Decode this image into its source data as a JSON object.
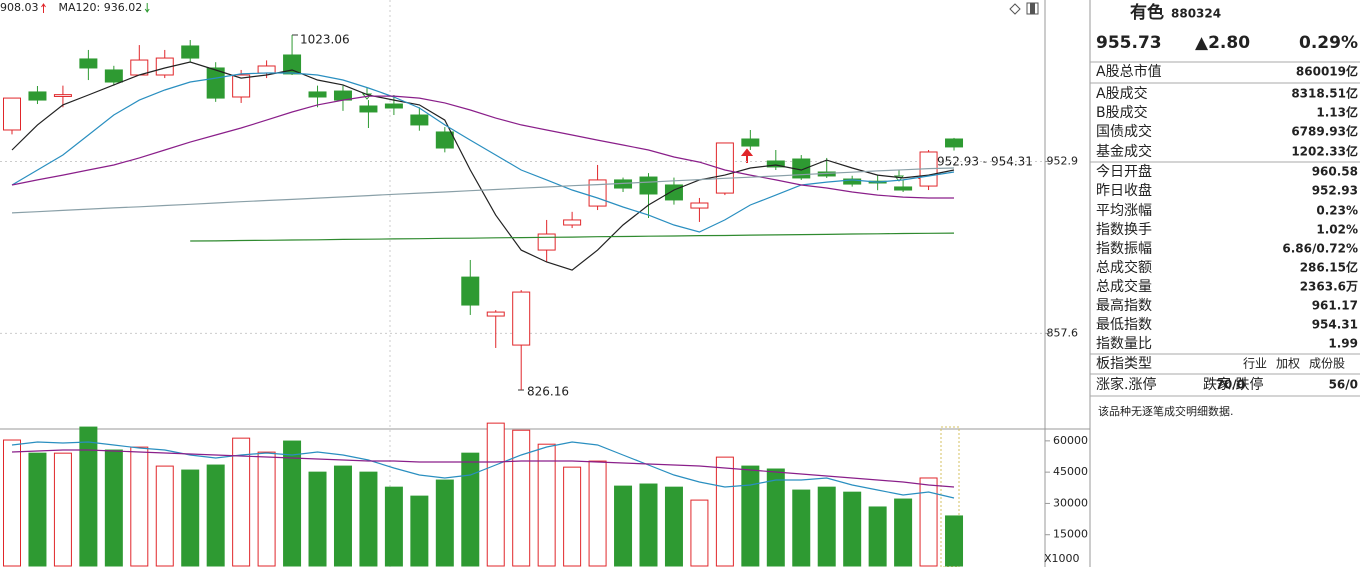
{
  "chart_data": {
    "type": "candlestick",
    "legend": [
      {
        "text": "908.03",
        "color": "#333333"
      },
      {
        "text": "MA120: 936.02",
        "color": "#1aa3b8"
      }
    ],
    "ylim": [
      805.1,
      1042.5
    ],
    "yticks": [
      952.9,
      857.6
    ],
    "up_color": "#e0262a",
    "down_color": "#2e9a32",
    "ohlc": [
      [
        970.4,
        988,
        968,
        988.1
      ],
      [
        991.5,
        994.8,
        984.8,
        987.0
      ],
      [
        989,
        995,
        983,
        990
      ],
      [
        1009.8,
        1014.8,
        998.1,
        1004.8
      ],
      [
        1003.7,
        1006,
        995,
        997
      ],
      [
        1000.9,
        1017.5,
        1000.9,
        1009.2
      ],
      [
        1000.9,
        1014.8,
        999.2,
        1010.3
      ],
      [
        1017,
        1020.3,
        1008,
        1010.3
      ],
      [
        1004.8,
        1008,
        986,
        988.1
      ],
      [
        988.7,
        1003.7,
        985.4,
        1000.9
      ],
      [
        1002,
        1009,
        999.2,
        1005.9
      ],
      [
        1012,
        1023.06,
        1000.9,
        1001.5
      ],
      [
        991.5,
        995,
        983,
        988.7
      ],
      [
        992,
        995,
        981,
        987
      ],
      [
        983.7,
        987,
        971.5,
        980.4
      ],
      [
        984.8,
        989.8,
        978.7,
        982.6
      ],
      [
        978.7,
        983,
        970,
        973.2
      ],
      [
        969.3,
        972,
        958,
        960.4
      ],
      [
        888.8,
        898.3,
        867.8,
        873.3
      ],
      [
        867.2,
        870.5,
        849.5,
        869.4
      ],
      [
        851.1,
        881.6,
        826.16,
        880.5
      ],
      [
        903.8,
        920.5,
        897.2,
        912.7
      ],
      [
        917.7,
        925,
        916,
        920.5
      ],
      [
        928.2,
        951,
        926,
        942.7
      ],
      [
        942.7,
        944,
        936,
        938.2
      ],
      [
        944.3,
        946.5,
        921.6,
        934.9
      ],
      [
        939.9,
        944,
        929,
        931.6
      ],
      [
        927.1,
        932.7,
        919.4,
        929.9
      ],
      [
        935.4,
        963.2,
        934.3,
        963.2
      ],
      [
        965.4,
        970.4,
        959.3,
        961.5
      ],
      [
        953.2,
        959.3,
        948.2,
        949.9
      ],
      [
        954.3,
        956.5,
        942.7,
        943.8
      ],
      [
        947.1,
        954.9,
        943.8,
        944.9
      ],
      [
        943.2,
        945,
        939,
        940.4
      ],
      [
        942,
        945.5,
        937,
        941
      ],
      [
        938.8,
        942.7,
        936,
        937.1
      ],
      [
        939.3,
        959.3,
        937.1,
        958.2
      ],
      [
        965.4,
        966,
        959,
        961
      ]
    ],
    "series": [
      {
        "color": "#222222",
        "values": [
          959.3,
          973.2,
          984.3,
          989.8,
          995.4,
          1000.9,
          1004.8,
          1008.1,
          1003.7,
          999.2,
          1000.9,
          1003.7,
          998.1,
          995.4,
          989.8,
          987.0,
          984.3,
          975.9,
          948.2,
          923.2,
          903.8,
          897.2,
          892.7,
          903.8,
          917.7,
          928.8,
          937.1,
          942.7,
          945.4,
          949.3,
          951.0,
          948.2,
          953.7,
          949.3,
          945.4,
          943.8,
          945.4,
          948.2
        ]
      },
      {
        "color": "#2a8fc0",
        "values": [
          939.9,
          948.2,
          956.5,
          967.6,
          978.7,
          987.0,
          992.6,
          997.0,
          999.2,
          1001.5,
          1002.0,
          1002.0,
          1000.9,
          998.1,
          993.7,
          988.7,
          982.6,
          973.2,
          964.8,
          956.5,
          948.2,
          942.7,
          937.1,
          932.7,
          927.7,
          923.2,
          917.7,
          913.8,
          920.5,
          928.8,
          934.3,
          939.9,
          941.5,
          942.7,
          941.5,
          942.7,
          944.9,
          947.1
        ]
      },
      {
        "color": "#8a1f8a",
        "values": [
          939.9,
          942.7,
          945.4,
          948.2,
          951.0,
          954.9,
          959.3,
          963.7,
          967.6,
          971.5,
          975.9,
          980.4,
          984.3,
          987.0,
          989.2,
          989.2,
          988.1,
          985.4,
          981.5,
          977.0,
          973.2,
          970.4,
          967.6,
          964.8,
          962.1,
          959.3,
          955.4,
          952.6,
          948.2,
          945.4,
          942.7,
          939.9,
          938.2,
          936.0,
          934.3,
          933.2,
          932.7,
          932.7
        ]
      },
      {
        "color": "#8aa0a8",
        "values": [
          924.4,
          925.1,
          925.8,
          926.5,
          927.2,
          927.8,
          928.5,
          929.2,
          929.9,
          930.6,
          931.3,
          931.9,
          932.6,
          933.3,
          934.0,
          934.7,
          935.4,
          936.0,
          936.7,
          937.4,
          938.1,
          938.8,
          939.5,
          940.1,
          940.8,
          941.5,
          942.2,
          942.9,
          943.6,
          944.2,
          944.9,
          945.6,
          946.3,
          947.0,
          947.7,
          948.3,
          949.0,
          949.3
        ]
      },
      {
        "color": "#2f8a2f",
        "values": [
          null,
          null,
          null,
          null,
          null,
          null,
          null,
          908.8,
          908.9,
          909.1,
          909.2,
          909.4,
          909.5,
          909.7,
          909.8,
          910.0,
          910.1,
          910.3,
          910.4,
          910.6,
          910.7,
          910.9,
          911.0,
          911.2,
          911.3,
          911.5,
          911.6,
          911.8,
          911.9,
          912.1,
          912.2,
          912.4,
          912.5,
          912.7,
          912.8,
          913.0,
          913.1,
          913.2
        ]
      }
    ],
    "annotations": [
      {
        "text": "1023.06"
      },
      {
        "text": "826.16"
      },
      {
        "text": "952.93 - 954.31"
      }
    ],
    "volume": {
      "ylim": [
        0,
        70000
      ],
      "yticks": [
        60000,
        45000,
        30000,
        15000
      ],
      "unit_label": "X1000",
      "values": [
        60400,
        54100,
        54100,
        66600,
        55600,
        57000,
        47900,
        46000,
        48400,
        61300,
        54600,
        59900,
        45000,
        47900,
        45000,
        37800,
        33500,
        41200,
        54100,
        68500,
        65100,
        58400,
        47400,
        50300,
        38300,
        39300,
        37800,
        31600,
        52200,
        47900,
        46500,
        36400,
        37800,
        35400,
        28300,
        32100,
        42200,
        24000
      ],
      "series": [
        {
          "color": "#2a8fc0",
          "values": [
            58000,
            59450,
            58970,
            59450,
            58000,
            56580,
            55620,
            53220,
            51780,
            53220,
            54180,
            53220,
            54660,
            53220,
            50820,
            46990,
            43630,
            42190,
            43630,
            48420,
            53220,
            57050,
            59450,
            58000,
            53220,
            48420,
            43630,
            40270,
            37880,
            38840,
            41230,
            41230,
            42190,
            38840,
            36440,
            34040,
            35480,
            32600
          ]
        },
        {
          "color": "#8a1f8a",
          "values": [
            54660,
            55140,
            55620,
            55620,
            55140,
            54660,
            54180,
            53700,
            53220,
            52740,
            52260,
            51780,
            51300,
            50820,
            50340,
            50340,
            49860,
            49860,
            49860,
            49860,
            50340,
            50340,
            50340,
            49860,
            49380,
            48900,
            48420,
            47940,
            46990,
            46030,
            45070,
            44110,
            43150,
            42190,
            41230,
            40270,
            38840,
            37880
          ]
        }
      ]
    }
  },
  "panel": {
    "name": "有色",
    "code": "880324",
    "price": "955.73",
    "change": "▲2.80",
    "pct": "0.29%",
    "rows": [
      {
        "label": "A股总市值",
        "value": "860019亿",
        "color": "#111111"
      },
      {
        "label": "A股成交",
        "value": "8318.51亿",
        "color": "#111111"
      },
      {
        "label": "B股成交",
        "value": "1.13亿",
        "color": "#111111"
      },
      {
        "label": "国债成交",
        "value": "6789.93亿",
        "color": "#111111"
      },
      {
        "label": "基金成交",
        "value": "1202.33亿",
        "color": "#111111"
      },
      {
        "label": "今日开盘",
        "value": "960.58",
        "color": "#e0262a"
      },
      {
        "label": "昨日收盘",
        "value": "952.93",
        "color": "#111111"
      },
      {
        "label": "平均涨幅",
        "value": "0.23%",
        "color": "#e0262a"
      },
      {
        "label": "指数换手",
        "value": "1.02%",
        "color": "#111111"
      },
      {
        "label": "指数振幅",
        "value": "6.86/0.72%",
        "color": "#111111"
      },
      {
        "label": "总成交额",
        "value": "286.15亿",
        "color": "#111111"
      },
      {
        "label": "总成交量",
        "value": "2363.6万",
        "color": "#111111"
      },
      {
        "label": "最高指数",
        "value": "961.17",
        "color": "#e0262a"
      },
      {
        "label": "最低指数",
        "value": "954.31",
        "color": "#e0262a"
      },
      {
        "label": "指数量比",
        "value": "1.99",
        "color": "#e0262a"
      }
    ],
    "sector_type": {
      "label": "板指类型",
      "options": [
        "行业",
        "加权",
        "成份股"
      ]
    },
    "breadth": [
      {
        "label": "涨家.涨停",
        "value": "70/0"
      },
      {
        "label": "跌家.跌停",
        "value": "56/0"
      }
    ],
    "note": "该品种无逐笔成交明细数据."
  }
}
